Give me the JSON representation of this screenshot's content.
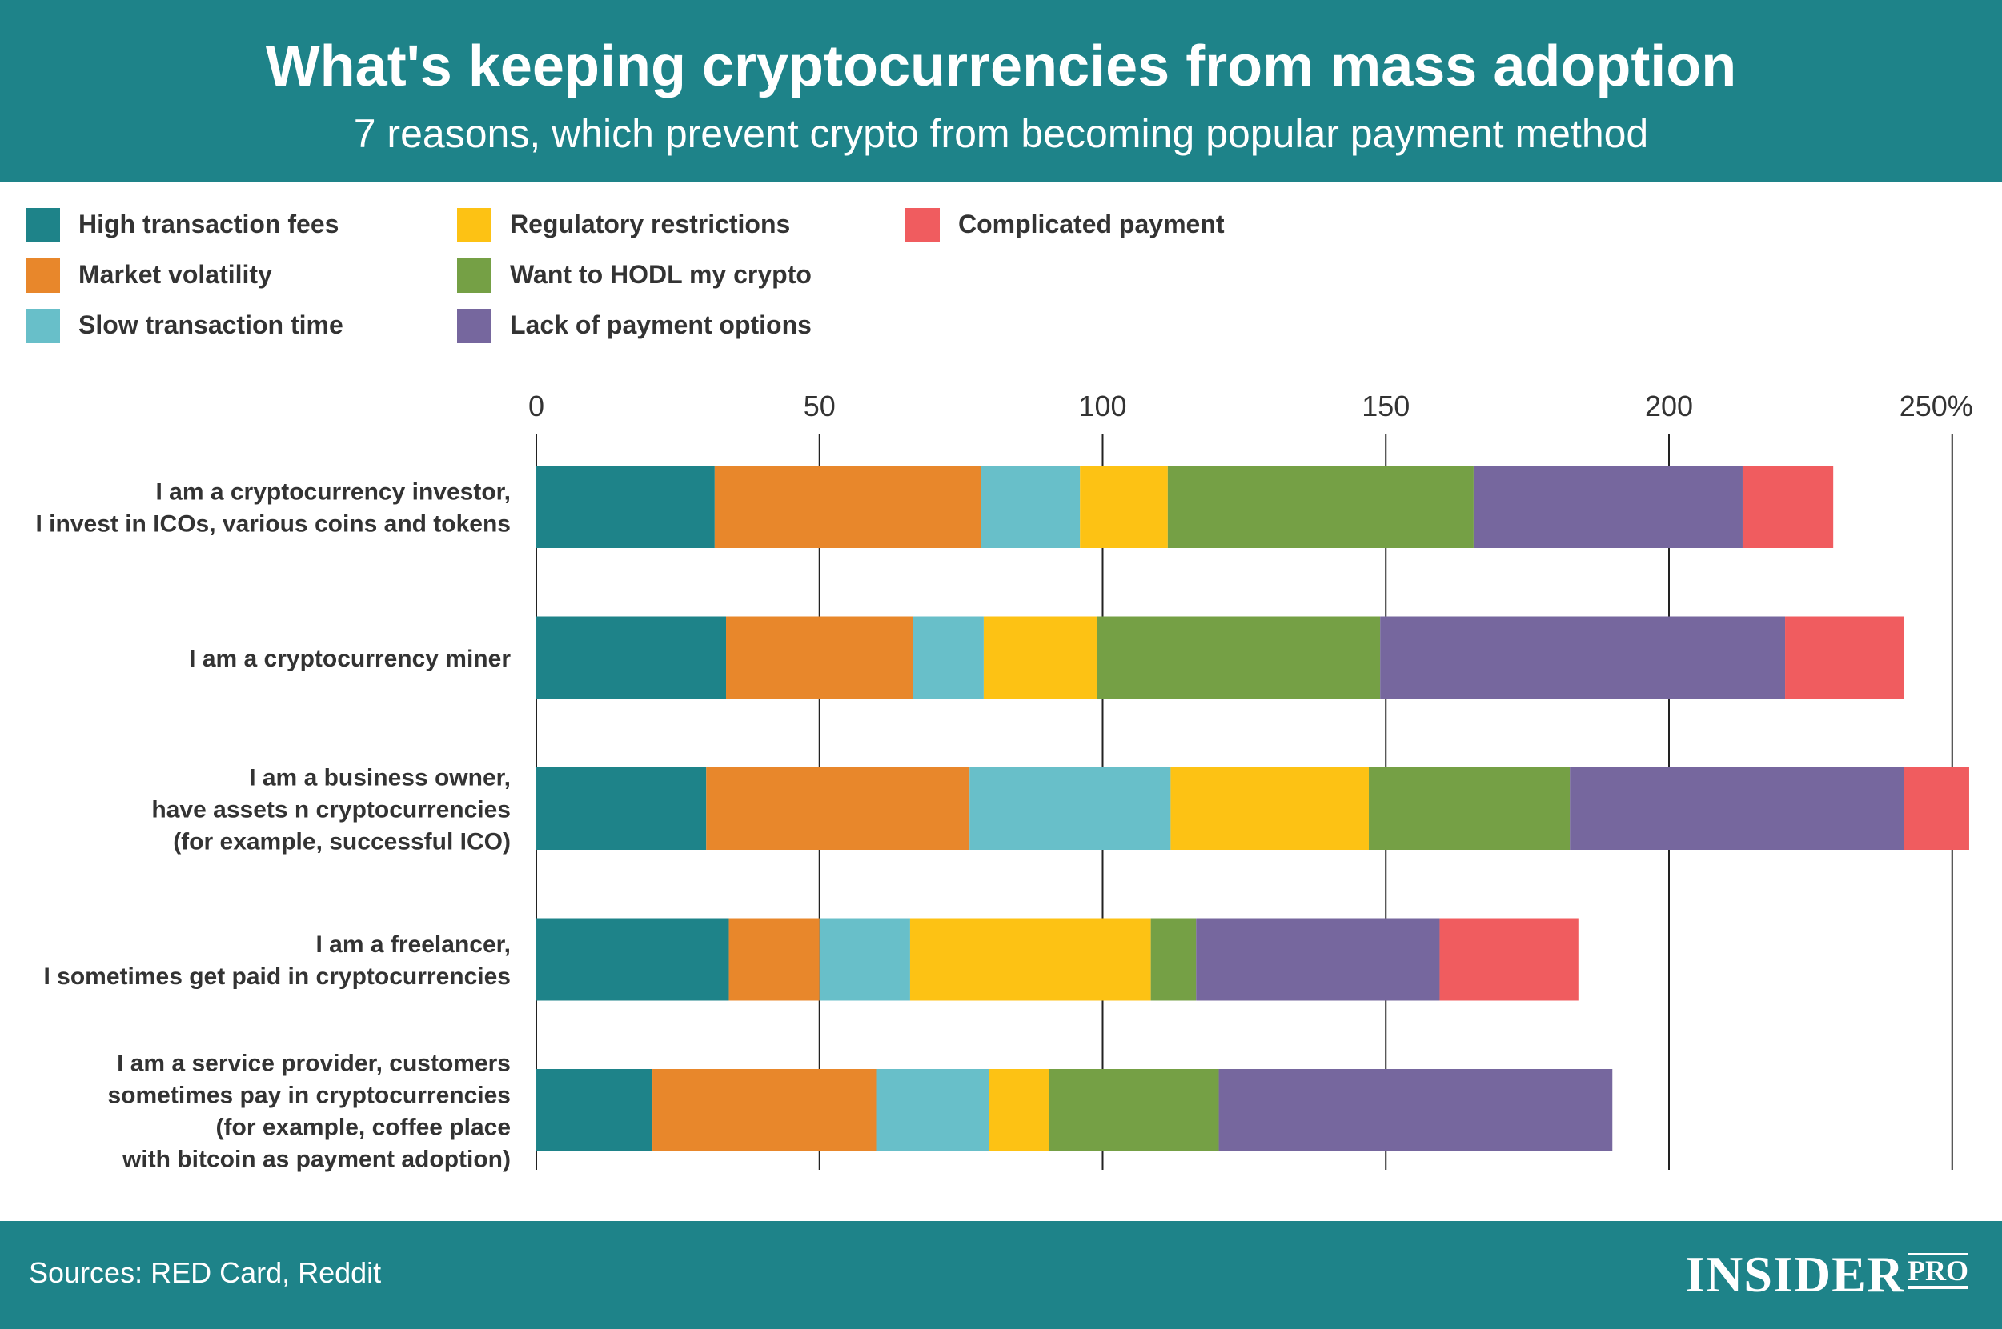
{
  "header": {
    "title": "What's keeping cryptocurrencies from mass adoption",
    "subtitle": "7 reasons, which prevent crypto from becoming popular payment method"
  },
  "footer": {
    "source": "Sources: RED Card, Reddit",
    "brand_main": "INSIDER",
    "brand_sub": "PRO"
  },
  "chart_data": {
    "type": "bar",
    "orientation": "horizontal",
    "stacked": true,
    "title": "What's keeping cryptocurrencies from mass adoption",
    "subtitle": "7 reasons, which prevent crypto from becoming popular payment method",
    "xlabel": "",
    "ylabel": "",
    "xlim": [
      0,
      250
    ],
    "x_ticks": [
      "0",
      "50",
      "100",
      "150",
      "200",
      "250%"
    ],
    "x_axis_position": "top",
    "grid": true,
    "legend_position": "top-left",
    "categories": [
      [
        "I am a cryptocurrency investor,",
        "I invest in ICOs, various coins and tokens"
      ],
      [
        "I am a cryptocurrency miner"
      ],
      [
        "I am a business owner,",
        "have assets n cryptocurrencies",
        "(for example, successful ICO)"
      ],
      [
        "I am a freelancer,",
        "I sometimes get paid in cryptocurrencies"
      ],
      [
        "I am a service provider, customers",
        "sometimes pay in cryptocurrencies",
        "(for example, coffee place",
        "with bitcoin as payment adoption)"
      ]
    ],
    "series": [
      {
        "name": "High transaction fees",
        "color": "#1e8389",
        "values": [
          31.5,
          33.5,
          30,
          34,
          20.5
        ]
      },
      {
        "name": "Market volatility",
        "color": "#e8872b",
        "values": [
          47,
          33,
          46.5,
          16,
          39.5
        ]
      },
      {
        "name": "Slow transaction time",
        "color": "#68bfc9",
        "values": [
          17.5,
          12.5,
          35.5,
          16,
          20
        ]
      },
      {
        "name": "Regulatory restrictions",
        "color": "#fdc214",
        "values": [
          15.5,
          20,
          35,
          42.5,
          10.5
        ]
      },
      {
        "name": "Want to HODL my crypto",
        "color": "#75a045",
        "values": [
          54,
          50,
          35.5,
          8,
          30
        ]
      },
      {
        "name": "Lack of payment options",
        "color": "#76679e",
        "values": [
          47.5,
          71.5,
          59,
          43,
          69.5
        ]
      },
      {
        "name": "Complicated payment",
        "color": "#f05c5f",
        "values": [
          16,
          21,
          11.5,
          24.5,
          0
        ]
      }
    ]
  }
}
